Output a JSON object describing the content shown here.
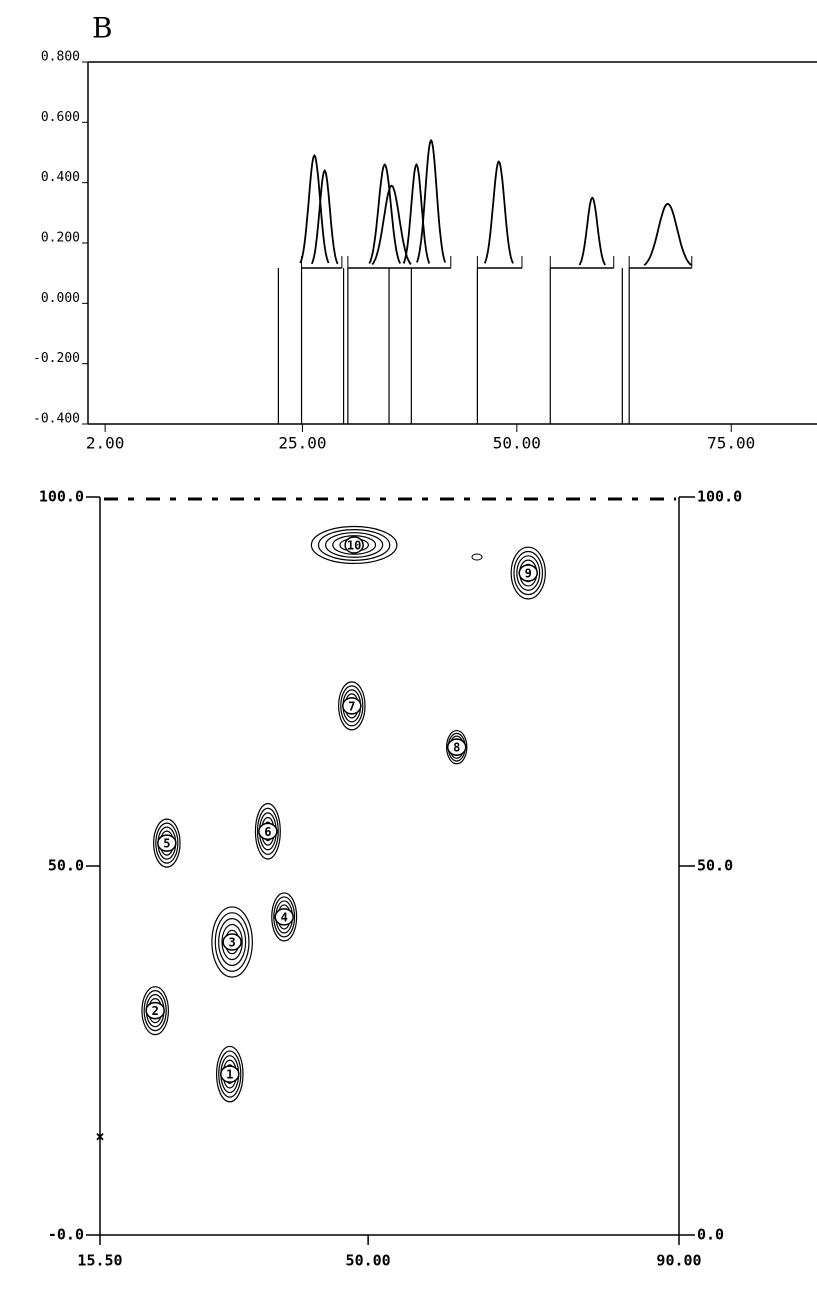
{
  "panel_label": "B",
  "chart_data": [
    {
      "type": "peaks",
      "xlim": [
        0,
        85
      ],
      "ylim": [
        -0.4,
        0.8
      ],
      "xticks": [
        {
          "value": 2,
          "label": "2.00"
        },
        {
          "value": 25,
          "label": "25.00"
        },
        {
          "value": 50,
          "label": "50.00"
        },
        {
          "value": 75,
          "label": "75.00"
        }
      ],
      "yticks": [
        {
          "value": 0.8,
          "label": "0.800"
        },
        {
          "value": 0.6,
          "label": "0.600"
        },
        {
          "value": 0.4,
          "label": "0.400"
        },
        {
          "value": 0.2,
          "label": "0.200"
        },
        {
          "value": 0,
          "label": "0.000"
        },
        {
          "value": -0.2,
          "label": "-0.200"
        },
        {
          "value": -0.4,
          "label": "-0.400"
        }
      ],
      "baseline": 0.117,
      "peaks": [
        {
          "center": 26.4,
          "height": 0.49,
          "width": 3.3
        },
        {
          "center": 27.6,
          "height": 0.44,
          "width": 3.0
        },
        {
          "center": 34.6,
          "height": 0.46,
          "width": 3.6
        },
        {
          "center": 35.4,
          "height": 0.39,
          "width": 4.5
        },
        {
          "center": 38.3,
          "height": 0.46,
          "width": 3.0
        },
        {
          "center": 40.0,
          "height": 0.54,
          "width": 3.3
        },
        {
          "center": 47.9,
          "height": 0.47,
          "width": 3.3
        },
        {
          "center": 58.8,
          "height": 0.35,
          "width": 3.0
        },
        {
          "center": 67.6,
          "height": 0.33,
          "width": 5.5
        }
      ],
      "windows": [
        [
          24.9,
          29.6
        ],
        [
          30.3,
          42.3
        ],
        [
          45.4,
          50.6
        ],
        [
          53.9,
          61.3
        ],
        [
          63.1,
          70.4
        ]
      ],
      "fractions": [
        22.2,
        24.9,
        29.8,
        30.3,
        35.1,
        37.7,
        45.4,
        53.9,
        62.3,
        63.1
      ]
    },
    {
      "type": "spots",
      "xlim": [
        15.5,
        90
      ],
      "ylim": [
        0,
        100
      ],
      "y2lim": [
        0,
        100
      ],
      "xticks": [
        {
          "value": 15.5,
          "label": "15.50"
        },
        {
          "value": 50,
          "label": "50.00"
        },
        {
          "value": 90,
          "label": "90.00"
        }
      ],
      "yticks": [
        {
          "value": 100,
          "label": "100.0"
        },
        {
          "value": 50,
          "label": "50.0"
        },
        {
          "value": 0,
          "label": "-0.0"
        }
      ],
      "y2ticks": [
        {
          "value": 100,
          "label": "100.0"
        },
        {
          "value": 50,
          "label": "50.0"
        },
        {
          "value": 0,
          "label": "0.0"
        }
      ],
      "spots": [
        {
          "label": "1",
          "x": 32.2,
          "y": 21.8,
          "width": 3.4,
          "height": 7.5
        },
        {
          "label": "2",
          "x": 22.6,
          "y": 30.4,
          "width": 3.4,
          "height": 6.5
        },
        {
          "label": "3",
          "x": 32.5,
          "y": 39.7,
          "width": 5.2,
          "height": 9.5
        },
        {
          "label": "4",
          "x": 39.2,
          "y": 43.1,
          "width": 3.2,
          "height": 6.5
        },
        {
          "label": "5",
          "x": 24.1,
          "y": 53.1,
          "width": 3.4,
          "height": 6.5
        },
        {
          "label": "6",
          "x": 37.1,
          "y": 54.7,
          "width": 3.2,
          "height": 7.5
        },
        {
          "label": "7",
          "x": 47.9,
          "y": 71.7,
          "width": 3.4,
          "height": 6.5
        },
        {
          "label": "8",
          "x": 61.4,
          "y": 66.1,
          "width": 2.6,
          "height": 4.5
        },
        {
          "label": "9",
          "x": 70.6,
          "y": 89.7,
          "width": 4.4,
          "height": 7.0
        },
        {
          "label": "10",
          "x": 48.2,
          "y": 93.5,
          "width": 11.0,
          "height": 5.0
        }
      ]
    }
  ]
}
